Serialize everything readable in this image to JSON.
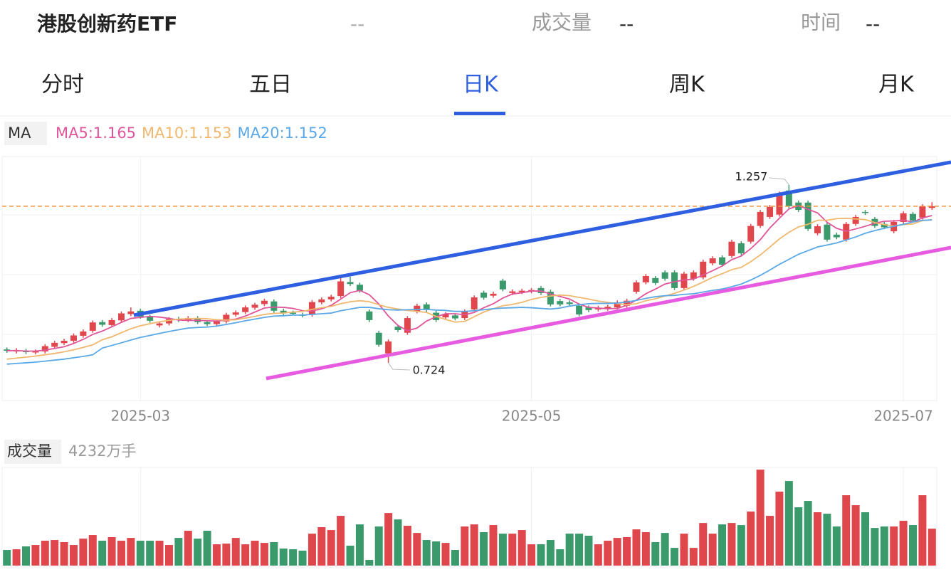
{
  "header": {
    "title": "港股创新药ETF",
    "price": "--",
    "volume_label": "成交量",
    "volume": "--",
    "time_label": "时间",
    "time": "--"
  },
  "tabs": [
    "分时",
    "五日",
    "日K",
    "周K",
    "月K"
  ],
  "active_tab": 2,
  "chart_data": {
    "type": "candlestick",
    "legend_title": "MA",
    "up_color": "#e0474c",
    "down_color": "#3b9a6c",
    "open": [
      0.764,
      0.758,
      0.76,
      0.755,
      0.758,
      0.772,
      0.783,
      0.79,
      0.805,
      0.82,
      0.846,
      0.837,
      0.851,
      0.87,
      0.88,
      0.862,
      0.836,
      0.842,
      0.856,
      0.852,
      0.858,
      0.846,
      0.84,
      0.848,
      0.868,
      0.876,
      0.889,
      0.9,
      0.908,
      0.88,
      0.874,
      0.868,
      0.868,
      0.905,
      0.914,
      0.924,
      0.966,
      0.958,
      0.878,
      0.814,
      0.752,
      0.832,
      0.814,
      0.878,
      0.899,
      0.874,
      0.86,
      0.866,
      0.858,
      0.884,
      0.934,
      0.925,
      0.97,
      0.933,
      0.936,
      0.938,
      0.948,
      0.937,
      0.909,
      0.905,
      0.895,
      0.89,
      0.884,
      0.886,
      0.89,
      0.895,
      0.937,
      0.965,
      0.978,
      0.995,
      0.995,
      0.948,
      0.976,
      0.98,
      1.022,
      1.04,
      1.044,
      1.082,
      1.087,
      1.134,
      1.161,
      1.168,
      1.24,
      1.204,
      1.204,
      1.112,
      1.138,
      1.108,
      1.093,
      1.14,
      1.176,
      1.155,
      1.14,
      1.118,
      1.146,
      1.17,
      1.159,
      1.188
    ],
    "high": [
      0.77,
      0.768,
      0.766,
      0.764,
      0.78,
      0.79,
      0.796,
      0.812,
      0.824,
      0.851,
      0.852,
      0.858,
      0.878,
      0.89,
      0.886,
      0.868,
      0.848,
      0.861,
      0.862,
      0.864,
      0.864,
      0.852,
      0.854,
      0.874,
      0.881,
      0.896,
      0.904,
      0.916,
      0.914,
      0.886,
      0.88,
      0.874,
      0.912,
      0.92,
      0.928,
      0.982,
      0.982,
      0.964,
      0.884,
      0.82,
      0.794,
      0.838,
      0.864,
      0.901,
      0.905,
      0.88,
      0.876,
      0.872,
      0.884,
      0.926,
      0.94,
      0.937,
      0.976,
      0.944,
      0.946,
      0.948,
      0.954,
      0.943,
      0.915,
      0.911,
      0.901,
      0.896,
      0.895,
      0.898,
      0.911,
      0.916,
      0.971,
      0.99,
      0.984,
      1.001,
      1.001,
      0.997,
      1.001,
      1.033,
      1.043,
      1.046,
      1.093,
      1.088,
      1.14,
      1.182,
      1.197,
      1.237,
      1.257,
      1.21,
      1.21,
      1.139,
      1.144,
      1.114,
      1.146,
      1.167,
      1.182,
      1.161,
      1.146,
      1.152,
      1.178,
      1.176,
      1.199,
      1.205
    ],
    "low": [
      0.754,
      0.752,
      0.75,
      0.749,
      0.752,
      0.766,
      0.777,
      0.784,
      0.799,
      0.814,
      0.832,
      0.831,
      0.845,
      0.864,
      0.856,
      0.844,
      0.83,
      0.836,
      0.846,
      0.846,
      0.84,
      0.834,
      0.834,
      0.842,
      0.862,
      0.87,
      0.883,
      0.894,
      0.874,
      0.867,
      0.866,
      0.86,
      0.862,
      0.899,
      0.908,
      0.918,
      0.954,
      0.934,
      0.846,
      0.772,
      0.724,
      0.816,
      0.808,
      0.872,
      0.876,
      0.846,
      0.854,
      0.851,
      0.852,
      0.878,
      0.913,
      0.919,
      0.938,
      0.927,
      0.93,
      0.932,
      0.927,
      0.893,
      0.893,
      0.894,
      0.863,
      0.876,
      0.878,
      0.88,
      0.884,
      0.889,
      0.931,
      0.959,
      0.957,
      0.97,
      0.942,
      0.942,
      0.97,
      0.974,
      1.016,
      1.012,
      1.038,
      1.046,
      1.081,
      1.128,
      1.155,
      1.162,
      1.187,
      1.176,
      1.119,
      1.106,
      1.087,
      1.094,
      1.087,
      1.134,
      1.167,
      1.128,
      1.124,
      1.112,
      1.14,
      1.144,
      1.153,
      1.182
    ],
    "close": [
      0.76,
      0.762,
      0.756,
      0.758,
      0.774,
      0.784,
      0.79,
      0.806,
      0.818,
      0.845,
      0.838,
      0.852,
      0.872,
      0.878,
      0.862,
      0.85,
      0.842,
      0.855,
      0.852,
      0.858,
      0.846,
      0.84,
      0.848,
      0.868,
      0.875,
      0.89,
      0.898,
      0.91,
      0.88,
      0.873,
      0.872,
      0.866,
      0.906,
      0.914,
      0.922,
      0.968,
      0.96,
      0.94,
      0.852,
      0.778,
      0.788,
      0.822,
      0.858,
      0.895,
      0.882,
      0.852,
      0.87,
      0.857,
      0.878,
      0.92,
      0.919,
      0.931,
      0.944,
      0.938,
      0.94,
      0.942,
      0.933,
      0.899,
      0.899,
      0.9,
      0.869,
      0.882,
      0.889,
      0.892,
      0.905,
      0.91,
      0.965,
      0.984,
      0.963,
      0.976,
      0.948,
      0.991,
      0.995,
      1.027,
      1.037,
      1.018,
      1.087,
      1.052,
      1.134,
      1.176,
      1.191,
      1.231,
      1.193,
      1.182,
      1.125,
      1.133,
      1.093,
      1.1,
      1.14,
      1.161,
      1.173,
      1.134,
      1.13,
      1.146,
      1.172,
      1.15,
      1.193,
      1.193
    ],
    "series": [
      {
        "name": "MA5:1.165",
        "color": "#e0559a",
        "values": [
          0.76,
          0.761,
          0.759,
          0.759,
          0.762,
          0.767,
          0.772,
          0.782,
          0.794,
          0.809,
          0.819,
          0.832,
          0.845,
          0.857,
          0.86,
          0.863,
          0.861,
          0.857,
          0.852,
          0.851,
          0.851,
          0.85,
          0.849,
          0.852,
          0.855,
          0.864,
          0.876,
          0.888,
          0.891,
          0.89,
          0.887,
          0.88,
          0.879,
          0.886,
          0.896,
          0.915,
          0.934,
          0.941,
          0.928,
          0.9,
          0.864,
          0.836,
          0.82,
          0.828,
          0.849,
          0.862,
          0.871,
          0.871,
          0.868,
          0.875,
          0.889,
          0.901,
          0.918,
          0.93,
          0.934,
          0.939,
          0.939,
          0.93,
          0.923,
          0.915,
          0.9,
          0.89,
          0.888,
          0.886,
          0.887,
          0.896,
          0.912,
          0.931,
          0.945,
          0.96,
          0.967,
          0.972,
          0.975,
          0.987,
          1.0,
          1.014,
          1.033,
          1.044,
          1.066,
          1.093,
          1.128,
          1.157,
          1.185,
          1.195,
          1.184,
          1.173,
          1.145,
          1.127,
          1.118,
          1.125,
          1.133,
          1.142,
          1.148,
          1.149,
          1.151,
          1.146,
          1.158,
          1.165
        ]
      },
      {
        "name": "MA10:1.153",
        "color": "#f0b86e",
        "values": [
          0.735,
          0.738,
          0.741,
          0.744,
          0.748,
          0.752,
          0.757,
          0.763,
          0.77,
          0.778,
          0.793,
          0.802,
          0.814,
          0.826,
          0.835,
          0.841,
          0.847,
          0.851,
          0.855,
          0.856,
          0.857,
          0.856,
          0.853,
          0.852,
          0.853,
          0.858,
          0.863,
          0.869,
          0.872,
          0.873,
          0.876,
          0.878,
          0.884,
          0.889,
          0.893,
          0.901,
          0.907,
          0.91,
          0.907,
          0.898,
          0.89,
          0.885,
          0.881,
          0.878,
          0.875,
          0.863,
          0.854,
          0.846,
          0.848,
          0.862,
          0.876,
          0.886,
          0.895,
          0.899,
          0.905,
          0.914,
          0.92,
          0.924,
          0.927,
          0.925,
          0.92,
          0.915,
          0.909,
          0.905,
          0.901,
          0.898,
          0.901,
          0.91,
          0.916,
          0.924,
          0.932,
          0.942,
          0.953,
          0.966,
          0.98,
          0.991,
          1.003,
          1.01,
          1.027,
          1.047,
          1.071,
          1.095,
          1.115,
          1.131,
          1.139,
          1.151,
          1.151,
          1.156,
          1.157,
          1.155,
          1.153,
          1.144,
          1.138,
          1.134,
          1.138,
          1.14,
          1.15,
          1.153
        ]
      },
      {
        "name": "MA20:1.152",
        "color": "#5aa8e6",
        "values": [
          0.72,
          0.722,
          0.724,
          0.726,
          0.729,
          0.732,
          0.735,
          0.739,
          0.743,
          0.748,
          0.768,
          0.776,
          0.784,
          0.792,
          0.8,
          0.806,
          0.812,
          0.818,
          0.823,
          0.828,
          0.83,
          0.831,
          0.834,
          0.839,
          0.844,
          0.85,
          0.855,
          0.86,
          0.864,
          0.865,
          0.867,
          0.867,
          0.869,
          0.871,
          0.873,
          0.88,
          0.885,
          0.89,
          0.89,
          0.886,
          0.883,
          0.882,
          0.883,
          0.884,
          0.884,
          0.882,
          0.881,
          0.878,
          0.878,
          0.88,
          0.883,
          0.886,
          0.888,
          0.889,
          0.89,
          0.889,
          0.887,
          0.885,
          0.888,
          0.894,
          0.898,
          0.901,
          0.902,
          0.902,
          0.903,
          0.906,
          0.911,
          0.917,
          0.922,
          0.925,
          0.926,
          0.929,
          0.931,
          0.936,
          0.941,
          0.945,
          0.952,
          0.96,
          0.972,
          0.986,
          1.002,
          1.019,
          1.034,
          1.049,
          1.06,
          1.071,
          1.077,
          1.083,
          1.092,
          1.101,
          1.112,
          1.12,
          1.127,
          1.133,
          1.139,
          1.146,
          1.151,
          1.152
        ]
      }
    ],
    "xlim": [
      -0.5,
      97.5
    ],
    "xticks": [
      {
        "value": 14,
        "label": "2025-03"
      },
      {
        "value": 55,
        "label": "2025-05"
      },
      {
        "value": 94,
        "label": "2025-07"
      }
    ],
    "ylim": [
      0.628,
      1.342
    ],
    "last_price_line": true,
    "last_price_color": "#f0953a",
    "volume_title": "成交量",
    "volume_value_label": "4232万手",
    "volume_ylim": [
      0,
      11000
    ],
    "volume": [
      1790,
      1870,
      2200,
      2360,
      2850,
      2930,
      2690,
      2360,
      3090,
      3500,
      2850,
      3260,
      2850,
      3170,
      2850,
      2850,
      2850,
      2360,
      3170,
      3990,
      3090,
      3990,
      2440,
      2520,
      3170,
      2440,
      2850,
      2600,
      2690,
      1950,
      1870,
      1710,
      3660,
      4400,
      4070,
      5700,
      2280,
      4720,
      650,
      4480,
      6020,
      5290,
      4560,
      3740,
      2930,
      2770,
      2600,
      1790,
      4480,
      4720,
      3830,
      4640,
      3660,
      3660,
      4070,
      2440,
      2440,
      2930,
      1870,
      3660,
      3660,
      3420,
      2440,
      2850,
      3170,
      3260,
      4150,
      3830,
      2690,
      3740,
      2030,
      3660,
      2030,
      4880,
      3660,
      4720,
      4880,
      4640,
      6190,
      10990,
      5700,
      8470,
      9690,
      6680,
      7410,
      6110,
      5940,
      4480,
      8060,
      6920,
      6110,
      4310,
      4480,
      4480,
      5130,
      4640,
      8060,
      4232
    ]
  }
}
